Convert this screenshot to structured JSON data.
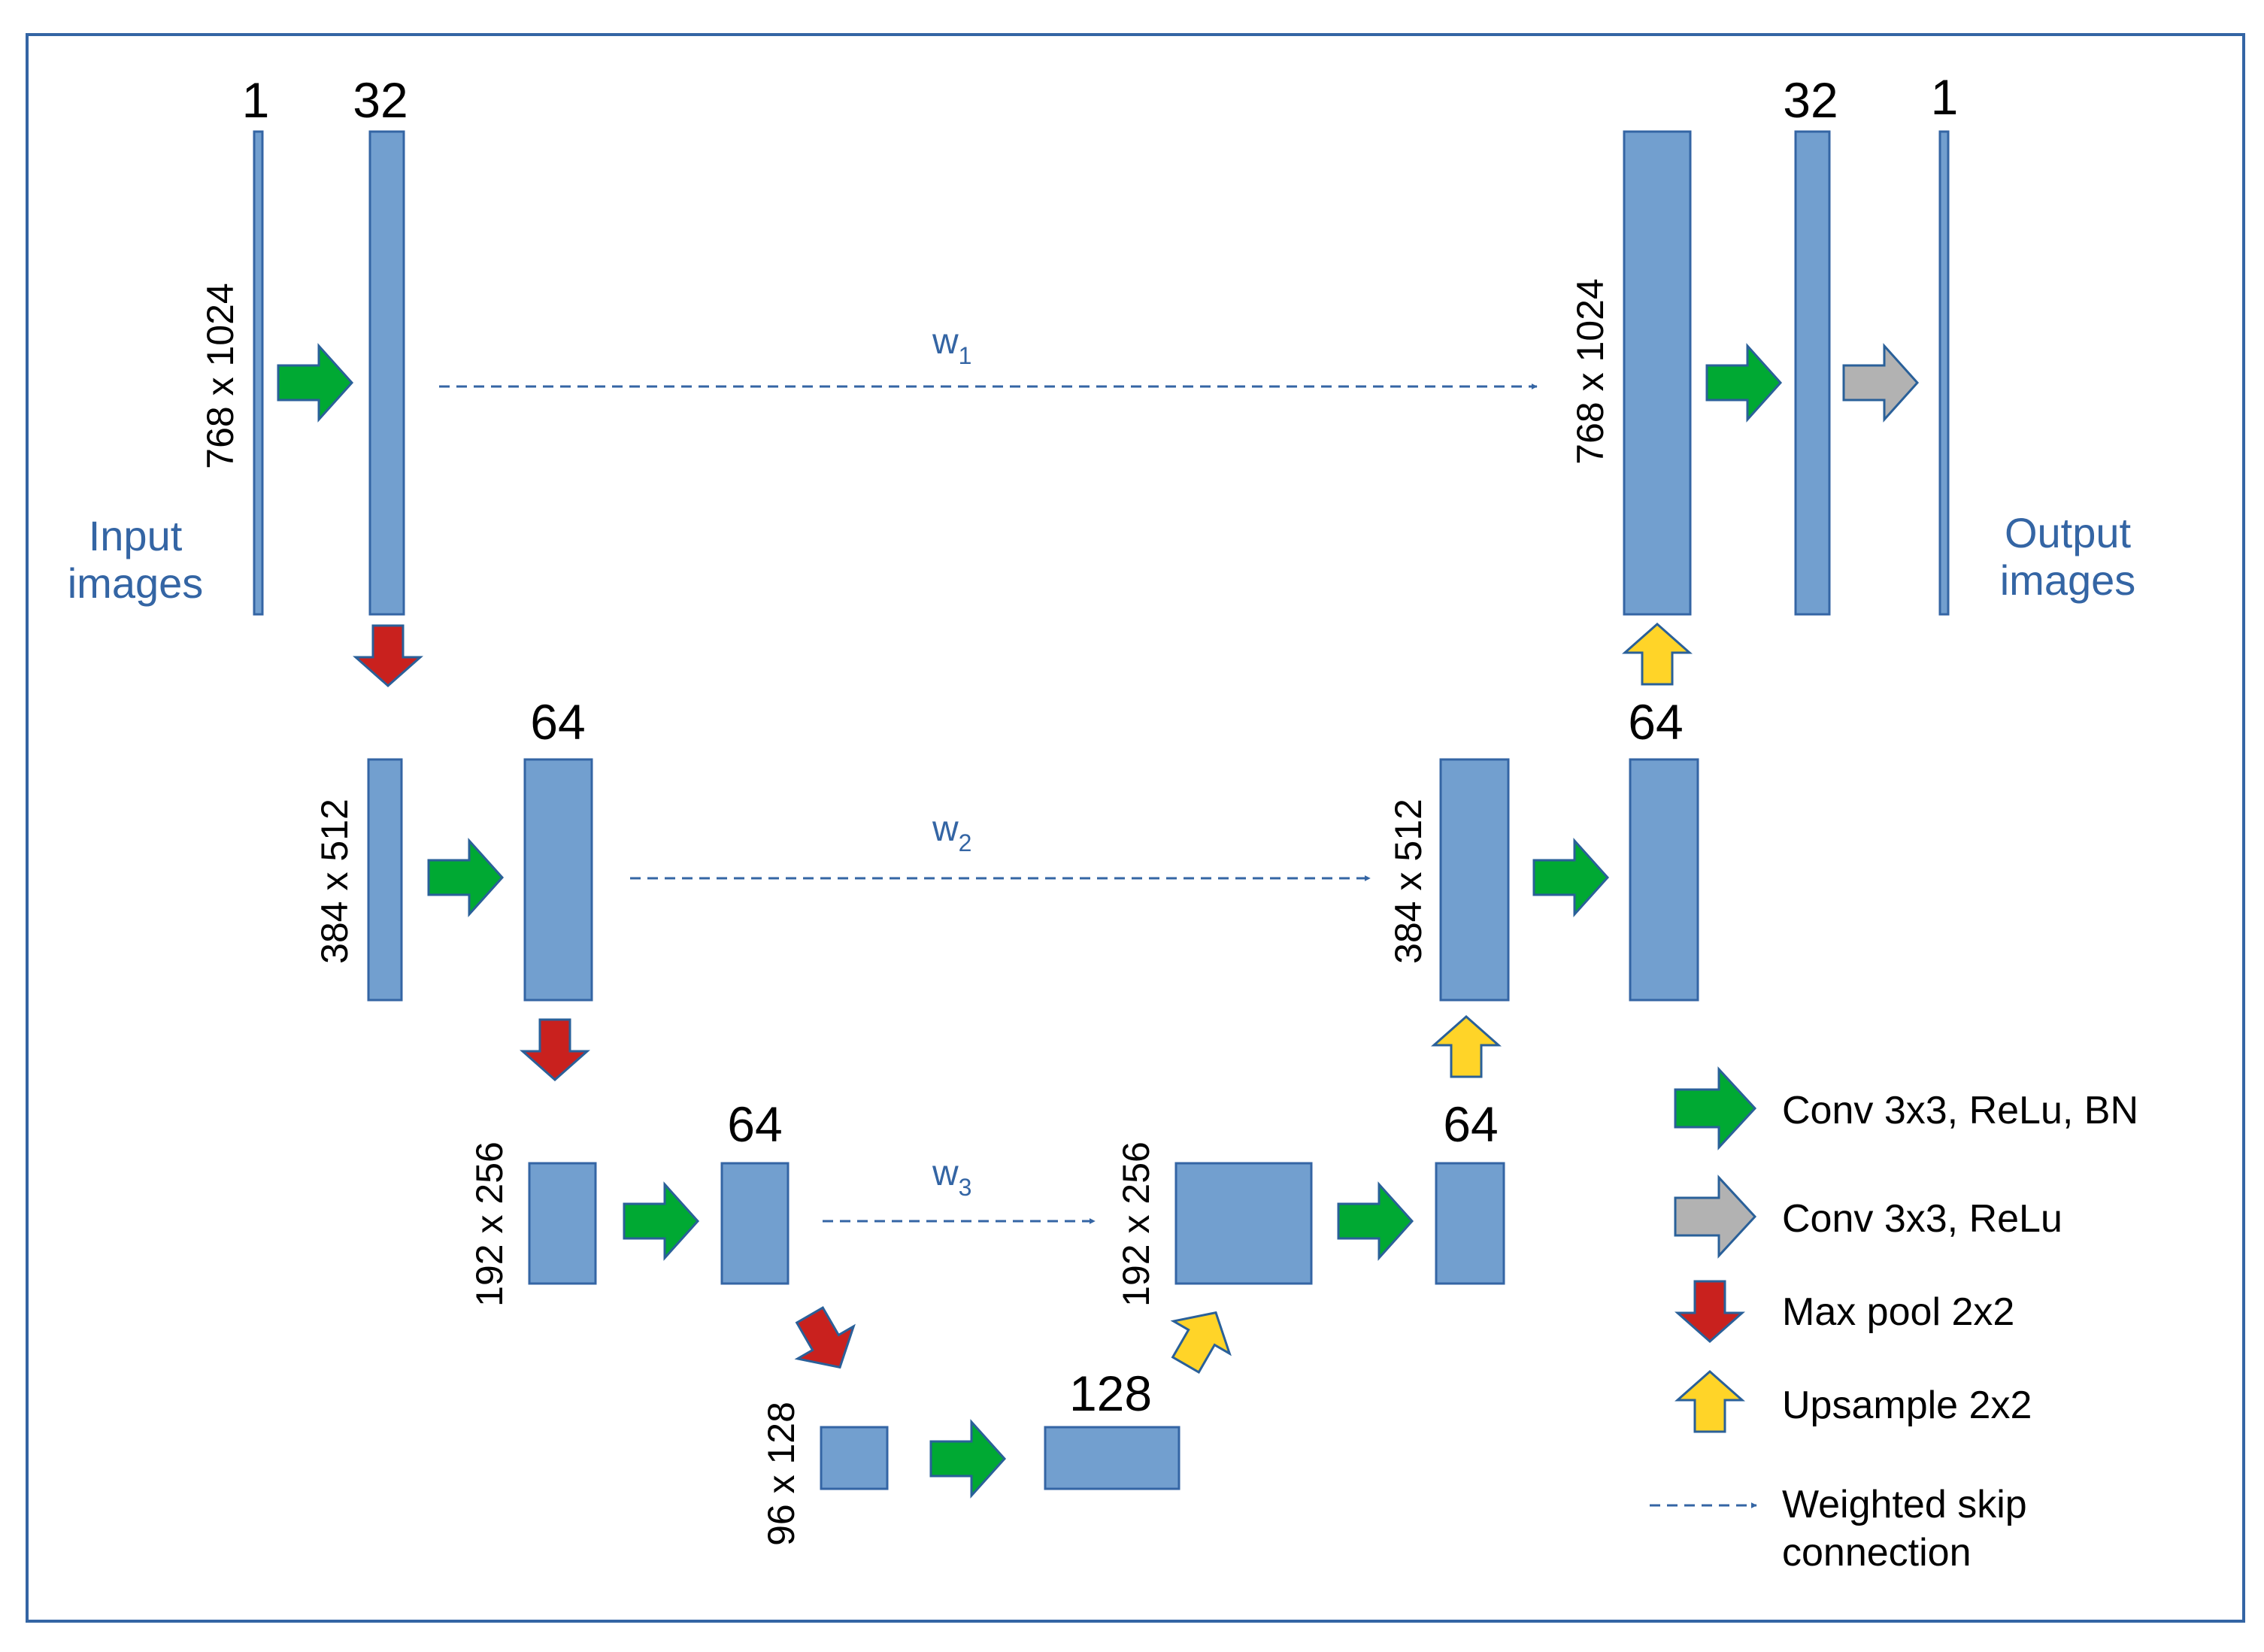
{
  "blocks": {
    "channels_1_left": "1",
    "channels_32_left": "32",
    "channels_64_l2": "64",
    "channels_64_l3": "64",
    "channels_128": "128",
    "channels_64_r3": "64",
    "channels_64_r2": "64",
    "channels_32_right": "32",
    "channels_1_right": "1"
  },
  "dimensions": {
    "l1_left": "768 x 1024",
    "l2_left": "384 x 512",
    "l3_left": "192 x 256",
    "l4": "96 x 128",
    "l3_right": "192 x 256",
    "l2_right": "384 x 512",
    "l1_right": "768 x 1024"
  },
  "io": {
    "input_line1": "Input",
    "input_line2": "images",
    "output_line1": "Output",
    "output_line2": "images"
  },
  "skips": [
    {
      "base": "w",
      "sub": "1"
    },
    {
      "base": "w",
      "sub": "2"
    },
    {
      "base": "w",
      "sub": "3"
    }
  ],
  "legend": {
    "conv_relu_bn": "Conv 3x3, ReLu, BN",
    "conv_relu": "Conv 3x3, ReLu",
    "maxpool": "Max pool 2x2",
    "upsample": "Upsample 2x2",
    "skip_line1": "Weighted skip",
    "skip_line2": "connection"
  },
  "colors": {
    "block_fill": "#729fcf",
    "block_stroke": "#3465a4",
    "conv_bn_arrow": "#00a933",
    "conv_arrow": "#b2b2b2",
    "maxpool_arrow": "#c9211e",
    "upsample_arrow": "#ffd428",
    "skip_line": "#3465a4"
  }
}
